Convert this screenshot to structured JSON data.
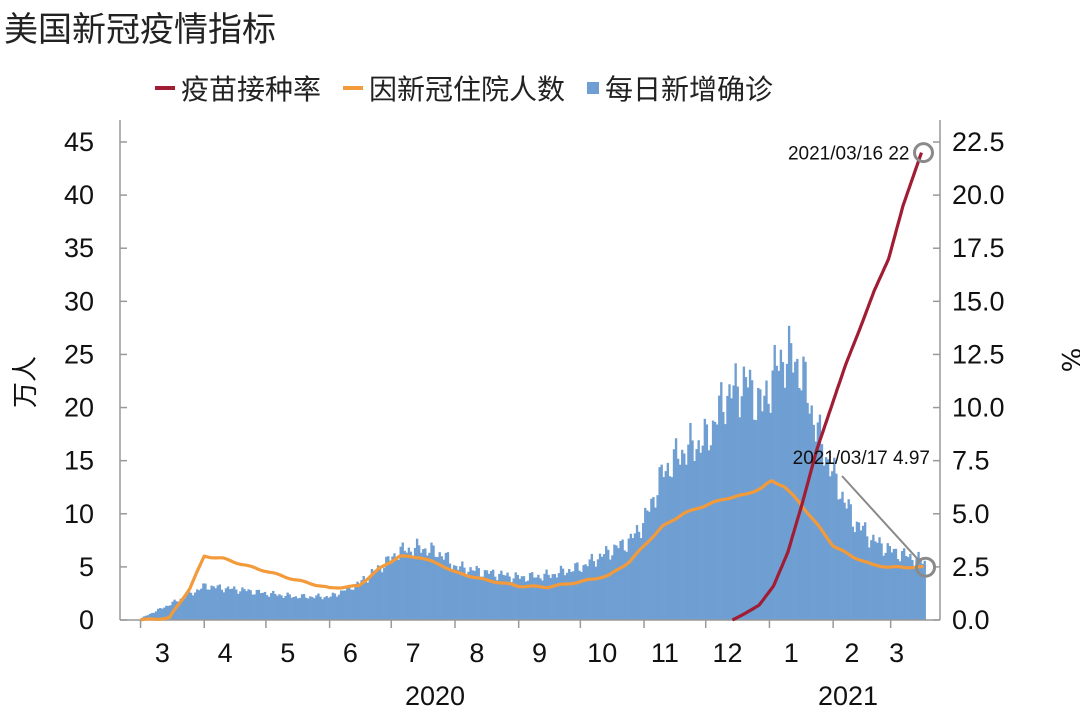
{
  "chart_data": {
    "type": "bar+line",
    "title": "美国新冠疫情指标",
    "ylabel_left": "万人",
    "ylabel_right": "%",
    "ylim_left": [
      0,
      45
    ],
    "ylim_right": [
      0,
      22.5
    ],
    "yticks_left": [
      "0",
      "5",
      "10",
      "15",
      "20",
      "25",
      "30",
      "35",
      "40",
      "45"
    ],
    "yticks_right": [
      "0.0",
      "2.5",
      "5.0",
      "7.5",
      "10.0",
      "12.5",
      "15.0",
      "17.5",
      "20.0",
      "22.5"
    ],
    "month_ticks": [
      "3",
      "4",
      "5",
      "6",
      "7",
      "8",
      "9",
      "10",
      "11",
      "12",
      "1",
      "2",
      "3"
    ],
    "year_labels": [
      "2020",
      "2021"
    ],
    "legend": [
      {
        "label": "疫苗接种率",
        "color": "#a01d34",
        "kind": "line"
      },
      {
        "label": "因新冠住院人数",
        "color": "#f39a3b",
        "kind": "line"
      },
      {
        "label": "每日新增确诊",
        "color": "#6f9fd2",
        "kind": "bar"
      }
    ],
    "series": [
      {
        "name": "每日新增确诊",
        "type": "bar",
        "axis": "left",
        "color": "#6f9fd2",
        "x": [
          "2020-03-01",
          "2020-03-15",
          "2020-03-25",
          "2020-04-01",
          "2020-04-10",
          "2020-04-20",
          "2020-05-01",
          "2020-05-15",
          "2020-06-01",
          "2020-06-15",
          "2020-06-25",
          "2020-07-05",
          "2020-07-15",
          "2020-07-25",
          "2020-08-01",
          "2020-08-15",
          "2020-09-01",
          "2020-09-15",
          "2020-10-01",
          "2020-10-15",
          "2020-10-25",
          "2020-11-01",
          "2020-11-10",
          "2020-11-20",
          "2020-12-01",
          "2020-12-10",
          "2020-12-20",
          "2020-12-28",
          "2021-01-02",
          "2021-01-08",
          "2021-01-15",
          "2021-01-25",
          "2021-02-01",
          "2021-02-10",
          "2021-02-20",
          "2021-03-01",
          "2021-03-17"
        ],
        "values": [
          0.2,
          1.5,
          2.5,
          3.2,
          3.0,
          2.8,
          2.5,
          2.2,
          2.2,
          3.5,
          5.0,
          6.5,
          6.8,
          6.2,
          5.0,
          4.5,
          4.0,
          4.2,
          5.0,
          6.5,
          7.5,
          9.5,
          14.0,
          16.0,
          17.0,
          21.0,
          22.5,
          20.0,
          23.0,
          25.0,
          24.0,
          17.0,
          13.5,
          9.5,
          7.5,
          6.5,
          5.5
        ]
      },
      {
        "name": "因新冠住院人数",
        "type": "line",
        "axis": "left",
        "color": "#f39a3b",
        "x": [
          "2020-03-01",
          "2020-03-15",
          "2020-03-25",
          "2020-04-01",
          "2020-04-10",
          "2020-04-20",
          "2020-05-01",
          "2020-05-15",
          "2020-06-01",
          "2020-06-15",
          "2020-06-25",
          "2020-07-05",
          "2020-07-15",
          "2020-07-25",
          "2020-08-01",
          "2020-08-15",
          "2020-09-01",
          "2020-09-15",
          "2020-10-01",
          "2020-10-15",
          "2020-10-25",
          "2020-11-01",
          "2020-11-10",
          "2020-11-20",
          "2020-12-01",
          "2020-12-10",
          "2020-12-20",
          "2020-12-28",
          "2021-01-02",
          "2021-01-08",
          "2021-01-15",
          "2021-01-25",
          "2021-02-01",
          "2021-02-10",
          "2021-02-20",
          "2021-03-01",
          "2021-03-17"
        ],
        "values": [
          0.0,
          0.2,
          3.0,
          6.0,
          5.8,
          5.2,
          4.6,
          3.8,
          3.0,
          3.2,
          4.8,
          6.0,
          5.9,
          5.2,
          4.5,
          3.8,
          3.2,
          3.1,
          3.6,
          4.2,
          5.5,
          7.0,
          8.8,
          10.0,
          10.8,
          11.4,
          11.8,
          12.4,
          13.1,
          12.6,
          11.2,
          8.8,
          7.0,
          6.0,
          5.2,
          4.97,
          4.97
        ]
      },
      {
        "name": "疫苗接种率",
        "type": "line",
        "axis": "right",
        "color": "#a01d34",
        "x": [
          "2020-12-14",
          "2020-12-20",
          "2020-12-27",
          "2021-01-03",
          "2021-01-10",
          "2021-01-17",
          "2021-01-24",
          "2021-01-31",
          "2021-02-07",
          "2021-02-14",
          "2021-02-21",
          "2021-02-28",
          "2021-03-07",
          "2021-03-16"
        ],
        "values": [
          0.0,
          0.3,
          0.7,
          1.6,
          3.2,
          5.5,
          8.0,
          10.0,
          12.0,
          13.7,
          15.5,
          17.0,
          19.5,
          22.0
        ]
      }
    ],
    "annotations": [
      {
        "text": "2021/03/16 22",
        "x": "2021-03-16",
        "y": 22,
        "axis": "right"
      },
      {
        "text": "2021/03/17 4.97",
        "x": "2021-03-17",
        "y": 4.97,
        "axis": "left"
      }
    ]
  }
}
